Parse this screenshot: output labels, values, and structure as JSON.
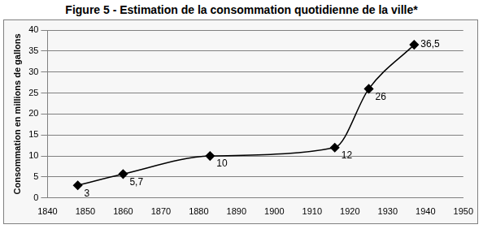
{
  "chart_data": {
    "type": "line",
    "title": "Figure 5 - Estimation de la consommation quotidienne de la ville*",
    "ylabel": "Consommation en millions de gallons",
    "x": [
      1848,
      1860,
      1883,
      1916,
      1925,
      1937
    ],
    "values": [
      3,
      5.7,
      10,
      12,
      26,
      36.5
    ],
    "value_labels": [
      "3",
      "5,7",
      "10",
      "12",
      "26",
      "36,5"
    ],
    "color": "#000000",
    "marker": "diamond",
    "line_style": "solid",
    "xlim": [
      1840,
      1950
    ],
    "xticks": [
      1840,
      1850,
      1860,
      1870,
      1880,
      1890,
      1900,
      1910,
      1920,
      1930,
      1940,
      1950
    ],
    "ylim": [
      0,
      40
    ],
    "yticks": [
      0,
      5,
      10,
      15,
      20,
      25,
      30,
      35,
      40
    ],
    "grid": true,
    "data_labels": true
  }
}
